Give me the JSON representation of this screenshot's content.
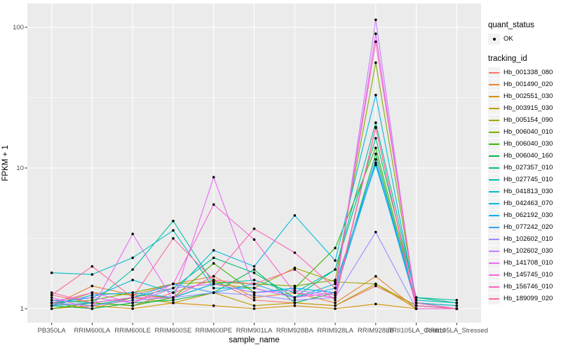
{
  "axes": {
    "x": {
      "label": "sample_name",
      "ticks": [
        "PB350LA",
        "RRIM600LA",
        "RRIM600LE",
        "RRIM600SE",
        "RRIM600PE",
        "RRIM901LA",
        "RRIM928BA",
        "RRIM928LA",
        "RRIM928LB",
        "RRII105LA_Control",
        "RRII105LA_Stressed"
      ]
    },
    "y": {
      "label": "FPKM + 1",
      "ticks": [
        "1",
        "10",
        "100"
      ],
      "scale": "log10"
    }
  },
  "legend": {
    "quant_status": {
      "title": "quant_status",
      "items": [
        {
          "label": "OK",
          "symbol": "point-icon",
          "color": "#000000"
        }
      ]
    },
    "tracking_id": {
      "title": "tracking_id"
    }
  },
  "style": {
    "panel_bg": "#EBEBEB",
    "grid_major": "#FFFFFF",
    "grid_minor": "#FFFFFF",
    "tick_text": "#4D4D4D",
    "tick_mark": "#333333",
    "point_color": "#000000",
    "legend_key_bg": "#F2F2F2"
  },
  "chart_data": {
    "type": "line",
    "title": "",
    "xlabel": "sample_name",
    "ylabel": "FPKM + 1",
    "y_scale": "log10",
    "y_ticks": [
      1,
      10,
      100
    ],
    "y_minor_ticks": [
      3.162,
      31.62
    ],
    "ylim": [
      0.8,
      148
    ],
    "grid": true,
    "legend_position": "right",
    "categories": [
      "PB350LA",
      "RRIM600LA",
      "RRIM600LE",
      "RRIM600SE",
      "RRIM600PE",
      "RRIM901LA",
      "RRIM928BA",
      "RRIM928LA",
      "RRIM928LB",
      "RRII105LA_Control",
      "RRII105LA_Stressed"
    ],
    "series": [
      {
        "name": "Hb_001338_080",
        "color": "#F8766D",
        "values": [
          1.25,
          1.1,
          1.05,
          1.3,
          1.6,
          1.15,
          1.1,
          1.05,
          1.45,
          1.05,
          1.0
        ]
      },
      {
        "name": "Hb_001490_020",
        "color": "#EA8331",
        "values": [
          1.05,
          1.45,
          1.25,
          1.5,
          1.7,
          1.2,
          1.3,
          1.1,
          1.7,
          1.0,
          1.0
        ]
      },
      {
        "name": "Hb_002551_030",
        "color": "#D89000",
        "values": [
          1.0,
          1.05,
          1.0,
          1.1,
          1.05,
          1.0,
          1.05,
          1.0,
          1.08,
          1.0,
          1.0
        ]
      },
      {
        "name": "Hb_003915_030",
        "color": "#C09B00",
        "values": [
          1.1,
          1.0,
          1.2,
          1.1,
          1.3,
          1.05,
          1.1,
          1.05,
          1.5,
          1.0,
          1.0
        ]
      },
      {
        "name": "Hb_005154_090",
        "color": "#A3A500",
        "values": [
          1.05,
          1.3,
          1.25,
          1.2,
          1.5,
          1.4,
          1.95,
          1.55,
          1.5,
          1.05,
          1.0
        ]
      },
      {
        "name": "Hb_006040_010",
        "color": "#7CAE00",
        "values": [
          1.1,
          1.15,
          1.3,
          1.5,
          1.55,
          1.5,
          1.45,
          1.6,
          56,
          1.1,
          1.05
        ]
      },
      {
        "name": "Hb_006040_030",
        "color": "#39B600",
        "values": [
          1.0,
          1.1,
          1.05,
          1.2,
          2.1,
          1.3,
          1.4,
          2.7,
          13.9,
          1.1,
          1.0
        ]
      },
      {
        "name": "Hb_006040_160",
        "color": "#00BB4E",
        "values": [
          1.05,
          1.0,
          1.1,
          1.15,
          1.3,
          1.9,
          1.1,
          1.3,
          12.6,
          1.05,
          1.0
        ]
      },
      {
        "name": "Hb_027357_010",
        "color": "#00BF7D",
        "values": [
          1.1,
          1.05,
          1.2,
          1.4,
          2.3,
          1.8,
          1.2,
          1.9,
          16.3,
          1.2,
          1.1
        ]
      },
      {
        "name": "Hb_027745_010",
        "color": "#00C1A3",
        "values": [
          1.15,
          1.1,
          1.9,
          4.2,
          1.5,
          1.6,
          1.3,
          1.9,
          21,
          1.2,
          1.15
        ]
      },
      {
        "name": "Hb_041813_030",
        "color": "#00BFC4",
        "values": [
          1.8,
          1.75,
          2.3,
          3.6,
          1.4,
          1.4,
          1.2,
          1.5,
          10.5,
          1.15,
          1.1
        ]
      },
      {
        "name": "Hb_042463_070",
        "color": "#00BAE0",
        "values": [
          1.1,
          1.2,
          1.6,
          1.3,
          2.6,
          2.0,
          4.6,
          2.2,
          33,
          1.1,
          1.05
        ]
      },
      {
        "name": "Hb_062192_030",
        "color": "#00B0F6",
        "values": [
          1.05,
          1.25,
          1.3,
          1.2,
          1.5,
          1.3,
          1.4,
          1.3,
          10.9,
          1.05,
          1.0
        ]
      },
      {
        "name": "Hb_077242_020",
        "color": "#35A2FF",
        "values": [
          1.05,
          1.1,
          1.2,
          1.5,
          1.3,
          1.5,
          1.2,
          1.4,
          11.5,
          1.1,
          1.0
        ]
      },
      {
        "name": "Hb_102602_010",
        "color": "#9590FF",
        "values": [
          1.1,
          1.05,
          1.15,
          1.2,
          1.3,
          1.25,
          1.15,
          1.2,
          3.5,
          1.0,
          1.0
        ]
      },
      {
        "name": "Hb_102602_030",
        "color": "#C77CFF",
        "values": [
          1.15,
          1.2,
          1.1,
          1.4,
          1.5,
          1.3,
          1.35,
          1.25,
          113,
          1.0,
          1.0
        ]
      },
      {
        "name": "Hb_141708_010",
        "color": "#E76BF3",
        "values": [
          1.2,
          1.0,
          3.4,
          1.15,
          8.6,
          1.4,
          1.2,
          1.3,
          90,
          1.05,
          1.0
        ]
      },
      {
        "name": "Hb_145745_010",
        "color": "#FA62DB",
        "values": [
          1.1,
          1.3,
          1.1,
          1.5,
          5.5,
          3.1,
          1.3,
          1.2,
          19.5,
          1.0,
          1.0
        ]
      },
      {
        "name": "Hb_156746_010",
        "color": "#FF62BC",
        "values": [
          1.3,
          1.1,
          1.2,
          1.2,
          1.7,
          3.7,
          2.5,
          1.4,
          79,
          1.1,
          1.0
        ]
      },
      {
        "name": "Hb_189099_020",
        "color": "#FF6A98",
        "values": [
          1.25,
          2.0,
          1.2,
          3.16,
          1.6,
          1.5,
          1.9,
          1.15,
          19.3,
          1.05,
          1.0
        ]
      }
    ]
  }
}
